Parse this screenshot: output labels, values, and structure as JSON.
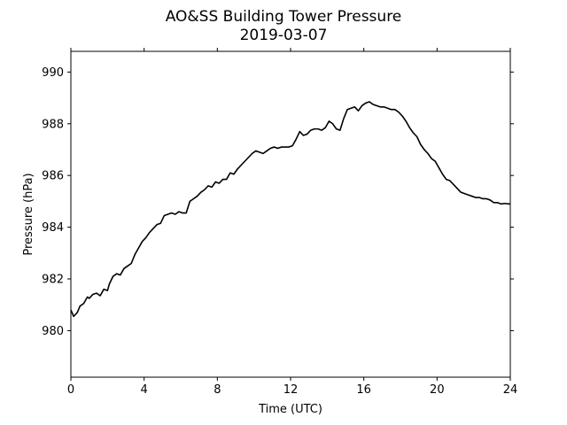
{
  "chart_data": {
    "type": "line",
    "title": "AO&SS Building Tower Pressure",
    "subtitle": "2019-03-07",
    "xlabel": "Time (UTC)",
    "ylabel": "Pressure (hPa)",
    "xlim": [
      0,
      24
    ],
    "ylim": [
      978.2,
      990.8
    ],
    "xticks": [
      0,
      4,
      8,
      12,
      16,
      20,
      24
    ],
    "yticks": [
      980,
      982,
      984,
      986,
      988,
      990
    ],
    "grid": false,
    "line_color": "#000000",
    "series": [
      {
        "x": [
          0,
          0.15,
          0.35,
          0.5,
          0.7,
          0.9,
          1.0,
          1.2,
          1.4,
          1.6,
          1.8,
          2.0,
          2.1,
          2.3,
          2.5,
          2.7,
          2.9,
          3.1,
          3.3,
          3.5,
          3.7,
          3.9,
          4.1,
          4.3,
          4.5,
          4.7,
          4.9,
          5.1,
          5.3,
          5.5,
          5.7,
          5.9,
          6.1,
          6.3,
          6.5,
          6.7,
          6.9,
          7.1,
          7.3,
          7.5,
          7.7,
          7.9,
          8.1,
          8.3,
          8.5,
          8.7,
          8.9,
          9.1,
          9.3,
          9.5,
          9.7,
          9.9,
          10.1,
          10.3,
          10.5,
          10.7,
          10.9,
          11.1,
          11.3,
          11.5,
          11.7,
          11.9,
          12.1,
          12.3,
          12.5,
          12.7,
          12.9,
          13.1,
          13.3,
          13.5,
          13.7,
          13.9,
          14.1,
          14.3,
          14.5,
          14.7,
          14.9,
          15.1,
          15.3,
          15.5,
          15.7,
          15.9,
          16.1,
          16.3,
          16.5,
          16.7,
          16.9,
          17.1,
          17.3,
          17.5,
          17.7,
          17.9,
          18.1,
          18.3,
          18.5,
          18.7,
          18.9,
          19.1,
          19.3,
          19.5,
          19.7,
          19.9,
          20.1,
          20.3,
          20.5,
          20.7,
          20.9,
          21.1,
          21.3,
          21.5,
          21.7,
          21.9,
          22.1,
          22.3,
          22.5,
          22.7,
          22.9,
          23.1,
          23.3,
          23.5,
          23.7,
          23.9,
          24.0
        ],
        "values": [
          980.8,
          980.55,
          980.7,
          980.95,
          981.05,
          981.3,
          981.25,
          981.4,
          981.45,
          981.35,
          981.6,
          981.55,
          981.8,
          982.1,
          982.2,
          982.15,
          982.4,
          982.5,
          982.6,
          982.95,
          983.2,
          983.45,
          983.6,
          983.8,
          983.95,
          984.1,
          984.15,
          984.45,
          984.5,
          984.55,
          984.5,
          984.6,
          984.55,
          984.55,
          985.0,
          985.1,
          985.2,
          985.35,
          985.45,
          985.6,
          985.55,
          985.75,
          985.7,
          985.85,
          985.85,
          986.1,
          986.05,
          986.25,
          986.4,
          986.55,
          986.7,
          986.85,
          986.95,
          986.9,
          986.85,
          986.95,
          987.05,
          987.1,
          987.05,
          987.1,
          987.1,
          987.1,
          987.15,
          987.4,
          987.7,
          987.55,
          987.6,
          987.75,
          987.8,
          987.8,
          987.75,
          987.85,
          988.1,
          988.0,
          987.8,
          987.75,
          988.2,
          988.55,
          988.6,
          988.65,
          988.5,
          988.7,
          988.8,
          988.85,
          988.75,
          988.7,
          988.65,
          988.65,
          988.6,
          988.55,
          988.55,
          988.45,
          988.3,
          988.1,
          987.85,
          987.65,
          987.5,
          987.2,
          987.0,
          986.85,
          986.65,
          986.55,
          986.3,
          986.05,
          985.85,
          985.8,
          985.65,
          985.5,
          985.35,
          985.3,
          985.25,
          985.2,
          985.15,
          985.15,
          985.1,
          985.1,
          985.05,
          984.95,
          984.95,
          984.9,
          984.92,
          984.9,
          984.9
        ]
      }
    ]
  }
}
